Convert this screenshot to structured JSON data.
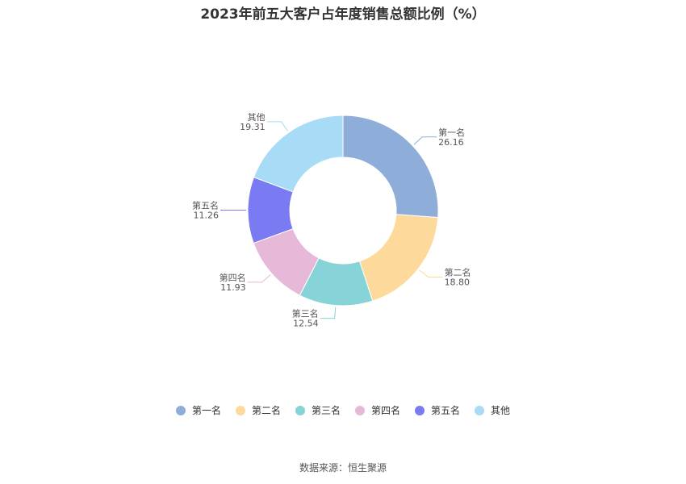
{
  "chart_data": {
    "type": "pie",
    "title": "2023年前五大客户占年度销售总额比例（%）",
    "categories": [
      "第一名",
      "第二名",
      "第三名",
      "第四名",
      "第五名",
      "其他"
    ],
    "values": [
      26.16,
      18.8,
      12.54,
      11.93,
      11.26,
      19.31
    ],
    "value_labels": [
      "26.16",
      "18.80",
      "12.54",
      "11.93",
      "11.26",
      "19.31"
    ],
    "colors": [
      "#8fadd9",
      "#fdd99b",
      "#86d4d8",
      "#e7b9d8",
      "#7a7af2",
      "#a8dcf6"
    ],
    "legend_position": "bottom"
  },
  "source": "数据来源：恒生聚源"
}
